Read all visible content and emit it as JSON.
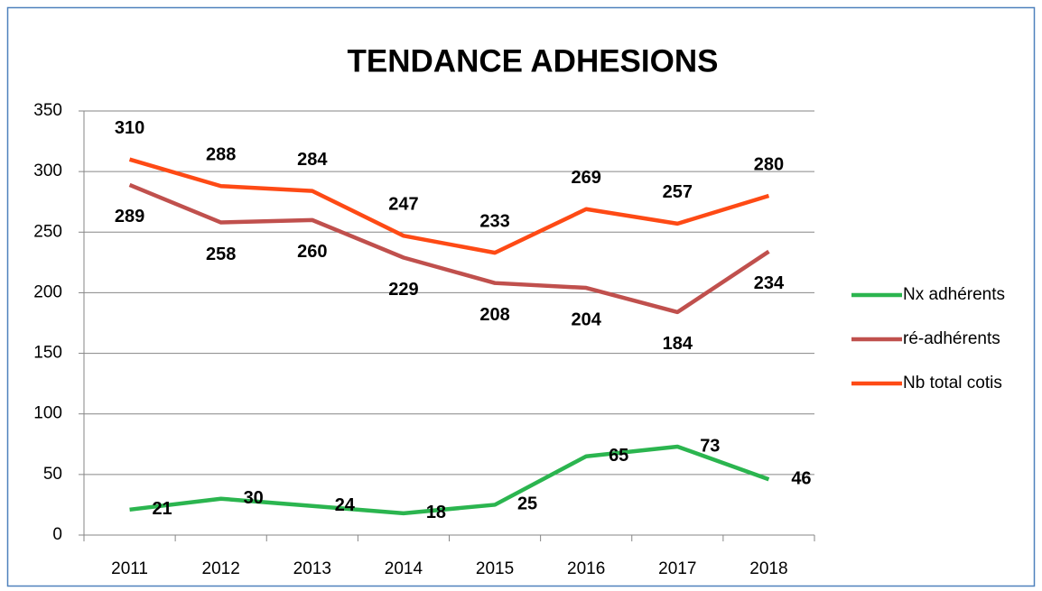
{
  "chart_data": {
    "type": "line",
    "title": "TENDANCE ADHESIONS",
    "categories": [
      "2011",
      "2012",
      "2013",
      "2014",
      "2015",
      "2016",
      "2017",
      "2018"
    ],
    "series": [
      {
        "name": "Nx adhérents",
        "color": "#2bb54f",
        "values": [
          21,
          30,
          24,
          18,
          25,
          65,
          73,
          46
        ]
      },
      {
        "name": "ré-adhérents",
        "color": "#c0504d",
        "values": [
          289,
          258,
          260,
          229,
          208,
          204,
          184,
          234
        ]
      },
      {
        "name": "Nb total cotis",
        "color": "#fe4a15",
        "values": [
          310,
          288,
          284,
          247,
          233,
          269,
          257,
          280
        ]
      }
    ],
    "ylim": [
      0,
      350
    ],
    "yticks": [
      0,
      50,
      100,
      150,
      200,
      250,
      300,
      350
    ],
    "grid": true,
    "legend": "right"
  }
}
